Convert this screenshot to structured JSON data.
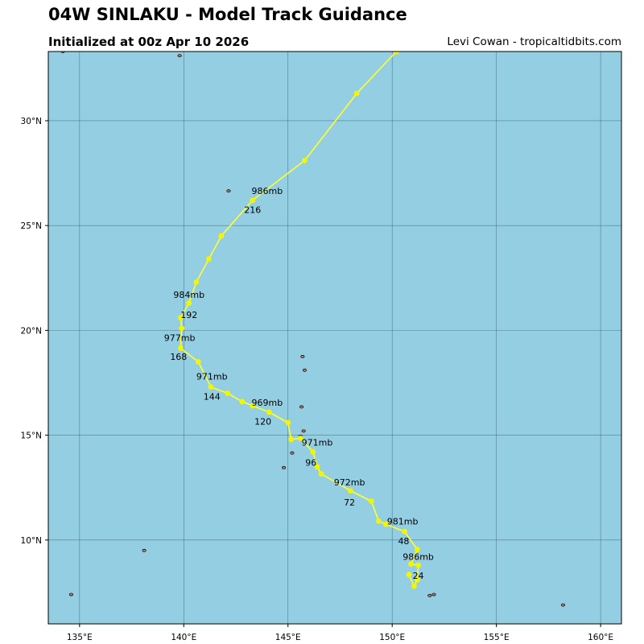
{
  "header": {
    "title": "04W SINLAKU - Model Track Guidance",
    "subtitle": "Initialized at 00z Apr 10 2026",
    "credit": "Levi Cowan - tropicaltidbits.com"
  },
  "colors": {
    "ocean": "#94cee3",
    "track": "#ffff2e",
    "track_point": "#f5f500",
    "land": "#b07d66",
    "grid": "#3d6a7a"
  },
  "map": {
    "lon_range": [
      133.5,
      161
    ],
    "lat_range": [
      6,
      33.3
    ],
    "lon_ticks": [
      {
        "value": 135,
        "label": "135°E"
      },
      {
        "value": 140,
        "label": "140°E"
      },
      {
        "value": 145,
        "label": "145°E"
      },
      {
        "value": 150,
        "label": "150°E"
      },
      {
        "value": 155,
        "label": "155°E"
      },
      {
        "value": 160,
        "label": "160°E"
      }
    ],
    "lat_ticks": [
      {
        "value": 10,
        "label": "10°N"
      },
      {
        "value": 15,
        "label": "15°N"
      },
      {
        "value": 20,
        "label": "20°N"
      },
      {
        "value": 25,
        "label": "25°N"
      },
      {
        "value": 30,
        "label": "30°N"
      }
    ],
    "track": [
      {
        "lon": 150.2,
        "lat": 33.3
      },
      {
        "lon": 148.3,
        "lat": 31.3
      },
      {
        "lon": 145.8,
        "lat": 28.1
      },
      {
        "lon": 143.3,
        "lat": 26.2
      },
      {
        "lon": 141.8,
        "lat": 24.5
      },
      {
        "lon": 141.2,
        "lat": 23.4
      },
      {
        "lon": 140.6,
        "lat": 22.3
      },
      {
        "lon": 140.25,
        "lat": 21.3
      },
      {
        "lon": 139.85,
        "lat": 20.6
      },
      {
        "lon": 139.9,
        "lat": 20.1
      },
      {
        "lon": 139.85,
        "lat": 19.15
      },
      {
        "lon": 140.7,
        "lat": 18.5
      },
      {
        "lon": 141.3,
        "lat": 17.3
      },
      {
        "lon": 142.1,
        "lat": 17.0
      },
      {
        "lon": 142.8,
        "lat": 16.6
      },
      {
        "lon": 143.3,
        "lat": 16.4
      },
      {
        "lon": 144.1,
        "lat": 16.1
      },
      {
        "lon": 145.0,
        "lat": 15.6
      },
      {
        "lon": 145.15,
        "lat": 14.8
      },
      {
        "lon": 145.6,
        "lat": 14.85
      },
      {
        "lon": 146.2,
        "lat": 14.2
      },
      {
        "lon": 146.4,
        "lat": 13.5
      },
      {
        "lon": 146.6,
        "lat": 13.15
      },
      {
        "lon": 148.0,
        "lat": 12.35
      },
      {
        "lon": 149.0,
        "lat": 11.85
      },
      {
        "lon": 149.35,
        "lat": 10.9
      },
      {
        "lon": 149.7,
        "lat": 10.75
      },
      {
        "lon": 150.6,
        "lat": 10.4
      },
      {
        "lon": 151.2,
        "lat": 9.55
      },
      {
        "lon": 150.9,
        "lat": 8.85
      },
      {
        "lon": 151.25,
        "lat": 8.8
      },
      {
        "lon": 151.2,
        "lat": 8.1
      },
      {
        "lon": 151.05,
        "lat": 7.8
      },
      {
        "lon": 150.8,
        "lat": 8.35
      }
    ],
    "labels": [
      {
        "text": "986mb",
        "lon": 144.0,
        "lat": 26.65
      },
      {
        "text": "216",
        "lon": 143.3,
        "lat": 25.75
      },
      {
        "text": "984mb",
        "lon": 140.25,
        "lat": 21.7
      },
      {
        "text": "192",
        "lon": 140.25,
        "lat": 20.75
      },
      {
        "text": "977mb",
        "lon": 139.8,
        "lat": 19.65
      },
      {
        "text": "168",
        "lon": 139.75,
        "lat": 18.75
      },
      {
        "text": "971mb",
        "lon": 141.35,
        "lat": 17.8
      },
      {
        "text": "144",
        "lon": 141.35,
        "lat": 16.85
      },
      {
        "text": "969mb",
        "lon": 144.0,
        "lat": 16.55
      },
      {
        "text": "120",
        "lon": 143.8,
        "lat": 15.65
      },
      {
        "text": "971mb",
        "lon": 146.4,
        "lat": 14.65
      },
      {
        "text": "96",
        "lon": 146.1,
        "lat": 13.7
      },
      {
        "text": "972mb",
        "lon": 147.95,
        "lat": 12.75
      },
      {
        "text": "72",
        "lon": 147.95,
        "lat": 11.8
      },
      {
        "text": "981mb",
        "lon": 150.5,
        "lat": 10.9
      },
      {
        "text": "48",
        "lon": 150.55,
        "lat": 9.95
      },
      {
        "text": "986mb",
        "lon": 151.25,
        "lat": 9.2
      },
      {
        "text": "24",
        "lon": 151.25,
        "lat": 8.3
      }
    ],
    "islands": [
      {
        "lon": 145.7,
        "lat": 18.75
      },
      {
        "lon": 145.8,
        "lat": 18.1
      },
      {
        "lon": 145.65,
        "lat": 16.35
      },
      {
        "lon": 145.75,
        "lat": 15.2
      },
      {
        "lon": 145.6,
        "lat": 14.95
      },
      {
        "lon": 145.2,
        "lat": 14.15
      },
      {
        "lon": 144.8,
        "lat": 13.45
      },
      {
        "lon": 142.15,
        "lat": 26.65
      },
      {
        "lon": 139.8,
        "lat": 33.1
      },
      {
        "lon": 138.1,
        "lat": 9.5
      },
      {
        "lon": 134.6,
        "lat": 7.4
      },
      {
        "lon": 158.2,
        "lat": 6.9
      },
      {
        "lon": 151.8,
        "lat": 7.35
      },
      {
        "lon": 152.0,
        "lat": 7.4
      },
      {
        "lon": 134.2,
        "lat": 33.3
      }
    ]
  }
}
